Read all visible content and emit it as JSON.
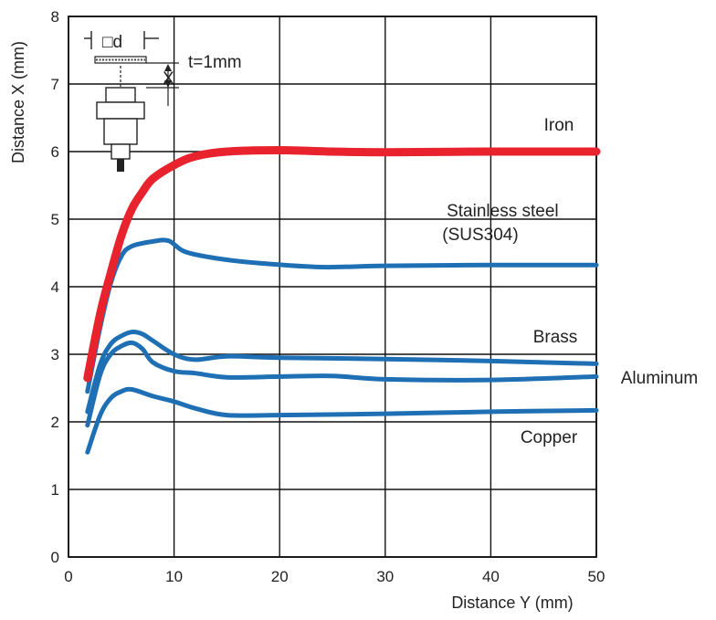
{
  "chart_data": {
    "type": "line",
    "title": "",
    "xlabel": "Distance Y (mm)",
    "ylabel": "Distance X (mm)",
    "xlim": [
      0,
      50
    ],
    "ylim": [
      0,
      8
    ],
    "xticks": [
      "0",
      "10",
      "20",
      "30",
      "40",
      "50"
    ],
    "yticks": [
      "0",
      "1",
      "2",
      "3",
      "4",
      "5",
      "6",
      "7",
      "8"
    ],
    "grid": true,
    "legend": "labels placed at right end of each curve",
    "series": [
      {
        "name": "Iron",
        "color": "#e8232d",
        "points": [
          [
            1.8,
            2.65
          ],
          [
            3,
            3.6
          ],
          [
            4,
            4.2
          ],
          [
            5,
            4.75
          ],
          [
            6,
            5.15
          ],
          [
            7,
            5.4
          ],
          [
            8,
            5.6
          ],
          [
            10,
            5.8
          ],
          [
            12,
            5.93
          ],
          [
            15,
            6.0
          ],
          [
            20,
            6.02
          ],
          [
            25,
            6.0
          ],
          [
            30,
            5.99
          ],
          [
            40,
            6.0
          ],
          [
            50,
            6.0
          ]
        ]
      },
      {
        "name": "Stainless steel (SUS304)",
        "color": "#1f6fb5",
        "points": [
          [
            1.8,
            2.45
          ],
          [
            3,
            3.4
          ],
          [
            4,
            4.05
          ],
          [
            5,
            4.45
          ],
          [
            6,
            4.6
          ],
          [
            8,
            4.67
          ],
          [
            9.5,
            4.68
          ],
          [
            11,
            4.52
          ],
          [
            14,
            4.42
          ],
          [
            18,
            4.35
          ],
          [
            24,
            4.29
          ],
          [
            30,
            4.31
          ],
          [
            40,
            4.32
          ],
          [
            50,
            4.32
          ]
        ]
      },
      {
        "name": "Brass",
        "color": "#1f6fb5",
        "points": [
          [
            1.8,
            2.15
          ],
          [
            3,
            2.85
          ],
          [
            4,
            3.15
          ],
          [
            5,
            3.27
          ],
          [
            6,
            3.33
          ],
          [
            7,
            3.3
          ],
          [
            8,
            3.2
          ],
          [
            10,
            3.0
          ],
          [
            12,
            2.92
          ],
          [
            15,
            2.97
          ],
          [
            20,
            2.95
          ],
          [
            30,
            2.93
          ],
          [
            40,
            2.9
          ],
          [
            50,
            2.86
          ]
        ]
      },
      {
        "name": "Aluminum",
        "color": "#1f6fb5",
        "points": [
          [
            1.8,
            1.95
          ],
          [
            3,
            2.7
          ],
          [
            4,
            3.0
          ],
          [
            5,
            3.12
          ],
          [
            6,
            3.17
          ],
          [
            7,
            3.08
          ],
          [
            8,
            2.88
          ],
          [
            10,
            2.75
          ],
          [
            12,
            2.72
          ],
          [
            15,
            2.66
          ],
          [
            20,
            2.67
          ],
          [
            25,
            2.68
          ],
          [
            30,
            2.63
          ],
          [
            40,
            2.62
          ],
          [
            50,
            2.67
          ]
        ]
      },
      {
        "name": "Copper",
        "color": "#1f6fb5",
        "points": [
          [
            1.8,
            1.55
          ],
          [
            3,
            2.1
          ],
          [
            4,
            2.35
          ],
          [
            5,
            2.45
          ],
          [
            6,
            2.48
          ],
          [
            8,
            2.38
          ],
          [
            10,
            2.3
          ],
          [
            12,
            2.2
          ],
          [
            15,
            2.1
          ],
          [
            20,
            2.1
          ],
          [
            30,
            2.12
          ],
          [
            40,
            2.15
          ],
          [
            50,
            2.17
          ]
        ]
      }
    ],
    "annotations": {
      "inset_d_label": "□d",
      "inset_x_label": "X",
      "inset_t_label": "t=1mm"
    }
  }
}
